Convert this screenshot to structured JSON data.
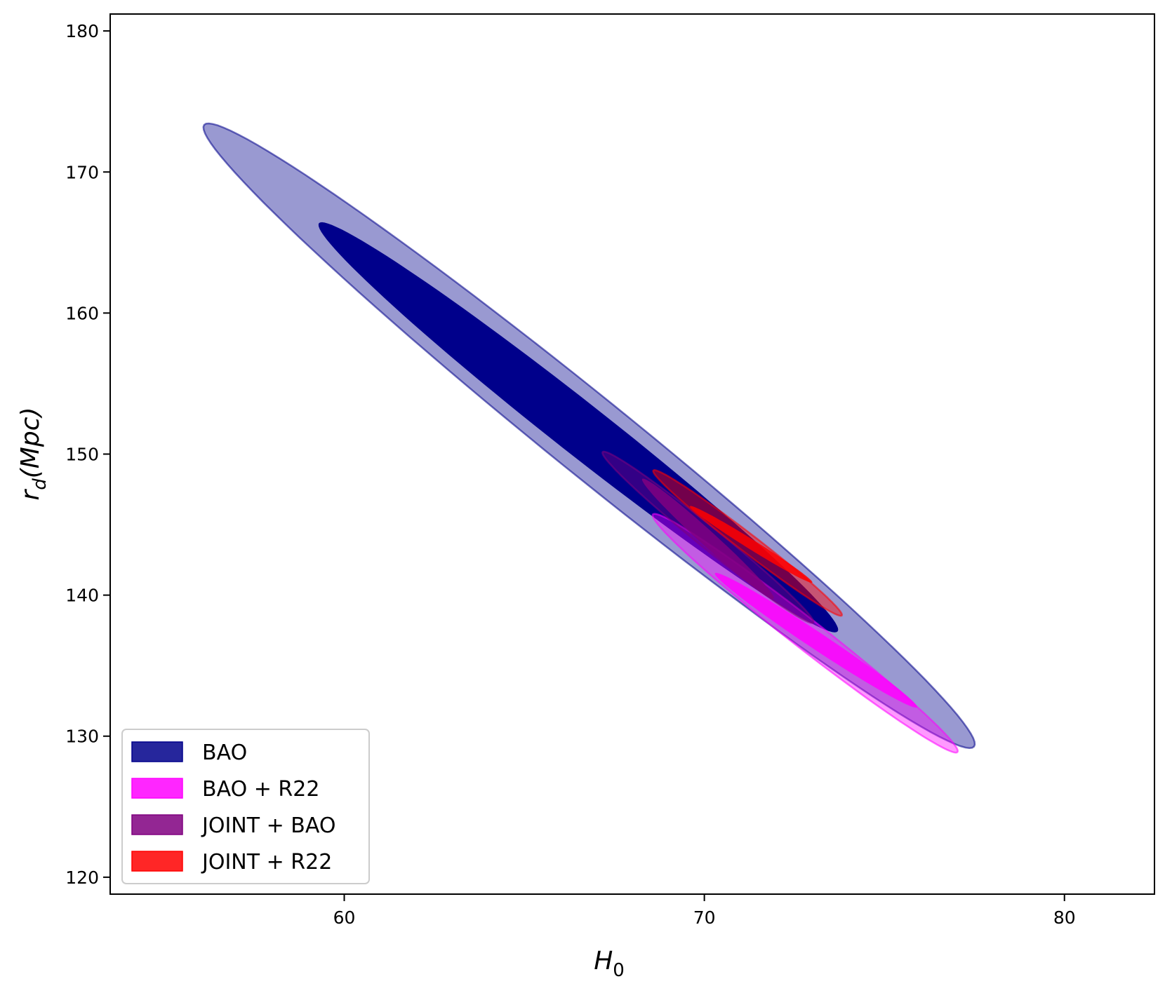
{
  "chart_data": {
    "type": "contour",
    "xlabel": {
      "main": "H",
      "sub": "0"
    },
    "ylabel": {
      "main": "r",
      "sub": "d",
      "rest": "(Mpc)"
    },
    "xlim": [
      53.5,
      82.5
    ],
    "ylim": [
      118.8,
      181.2
    ],
    "xticks": [
      60,
      70,
      80
    ],
    "yticks": [
      120,
      130,
      140,
      150,
      160,
      170,
      180
    ],
    "grid": false,
    "legend_position": "lower-left",
    "series": [
      {
        "name": "BAO",
        "color": "#00008b",
        "contours": [
          {
            "level": "2sigma",
            "center": [
              66.8,
              151.3
            ],
            "extent_x": [
              56.3,
              77.5
            ],
            "extent_y": [
              128.3,
              174.6
            ],
            "opacity": 0.4
          },
          {
            "level": "1sigma",
            "center": [
              66.5,
              151.9
            ],
            "extent_x": [
              59.3,
              73.6
            ],
            "extent_y": [
              136.7,
              167.1
            ],
            "opacity": 1.0
          }
        ]
      },
      {
        "name": "BAO + R22",
        "color": "#ff00ff",
        "contours": [
          {
            "level": "2sigma",
            "center": [
              72.8,
              137.3
            ],
            "extent_x": [
              68.6,
              77.0
            ],
            "extent_y": [
              128.6,
              146.3
            ],
            "opacity": 0.4
          },
          {
            "level": "1sigma",
            "center": [
              73.1,
              136.8
            ],
            "extent_x": [
              70.2,
              75.8
            ],
            "extent_y": [
              131.8,
              141.8
            ],
            "opacity": 0.85
          }
        ]
      },
      {
        "name": "JOINT + BAO",
        "color": "#800080",
        "contours": [
          {
            "level": "2sigma",
            "center": [
              70.1,
              144.1
            ],
            "extent_x": [
              67.1,
              72.9
            ],
            "extent_y": [
              138.5,
              151.2
            ],
            "opacity": 0.4
          },
          {
            "level": "1sigma",
            "center": [
              70.1,
              144.0
            ],
            "extent_x": [
              68.2,
              71.8
            ],
            "extent_y": [
              140.5,
              149.4
            ],
            "opacity": 0.85
          }
        ]
      },
      {
        "name": "JOINT + R22",
        "color": "#ff0000",
        "contours": [
          {
            "level": "2sigma",
            "center": [
              71.2,
              143.7
            ],
            "extent_x": [
              68.6,
              73.8
            ],
            "extent_y": [
              138.4,
              149.2
            ],
            "opacity": 0.45
          },
          {
            "level": "1sigma",
            "center": [
              71.3,
              143.6
            ],
            "extent_x": [
              69.5,
              72.9
            ],
            "extent_y": [
              140.8,
              146.5
            ],
            "opacity": 0.85
          }
        ]
      }
    ]
  }
}
